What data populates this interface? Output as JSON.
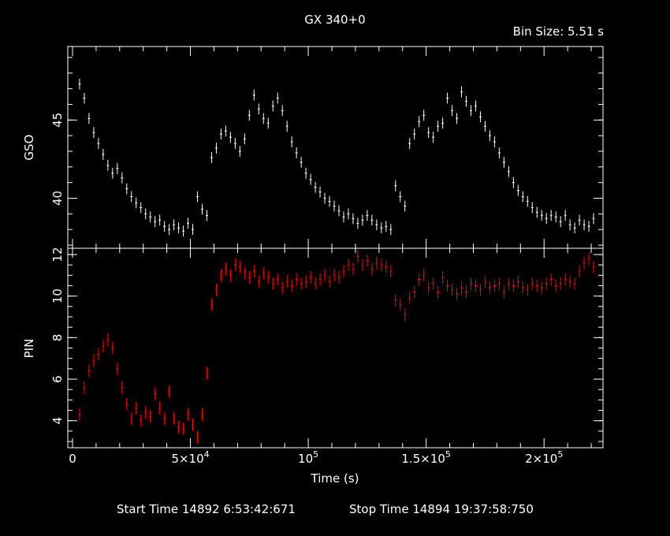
{
  "title": "GX 340+0",
  "bin_size": "Bin Size: 5.51 s",
  "footer": {
    "start": "Start Time 14892  6:53:42:671",
    "stop": "Stop Time 14894 19:37:58:750"
  },
  "colors": {
    "gso": "#ffffff",
    "pin": "#ff0000",
    "axes": "#ffffff",
    "background": "#000000"
  },
  "chart_data": [
    {
      "type": "scatter",
      "panel": "top",
      "ylabel": "GSO",
      "xlim": [
        -2000,
        225000
      ],
      "ylim": [
        36.8,
        49.7
      ],
      "yticks": [
        40,
        45
      ],
      "yticklabels": [
        "40",
        "45"
      ],
      "series": [
        {
          "color": "#ffffff",
          "x": [
            3000,
            5000,
            7000,
            9000,
            11000,
            13000,
            15000,
            17000,
            19000,
            21000,
            23000,
            25000,
            27000,
            29000,
            31000,
            33000,
            35000,
            37000,
            39000,
            41000,
            43000,
            45000,
            47000,
            49000,
            51000,
            53000,
            55000,
            57000,
            59000,
            61000,
            63000,
            65000,
            67000,
            69000,
            71000,
            73000,
            75000,
            77000,
            79000,
            81000,
            83000,
            85000,
            87000,
            89000,
            91000,
            93000,
            95000,
            97000,
            99000,
            101000,
            103000,
            105000,
            107000,
            109000,
            111000,
            113000,
            115000,
            117000,
            119000,
            121000,
            123000,
            125000,
            127000,
            129000,
            131000,
            133000,
            135000,
            137000,
            139000,
            141000,
            143000,
            145000,
            147000,
            149000,
            151000,
            153000,
            155000,
            157000,
            159000,
            161000,
            163000,
            165000,
            167000,
            169000,
            171000,
            173000,
            175000,
            177000,
            179000,
            181000,
            183000,
            185000,
            187000,
            189000,
            191000,
            193000,
            195000,
            197000,
            199000,
            201000,
            203000,
            205000,
            207000,
            209000,
            211000,
            213000,
            215000,
            217000,
            219000,
            221000
          ],
          "y": [
            47.3,
            46.4,
            45.1,
            44.2,
            43.5,
            42.8,
            42.1,
            41.6,
            41.9,
            41.3,
            40.6,
            40.1,
            39.7,
            39.4,
            39.0,
            38.8,
            38.5,
            38.6,
            38.2,
            38.0,
            38.3,
            38.1,
            37.9,
            38.4,
            38.0,
            40.1,
            39.3,
            38.9,
            42.6,
            43.2,
            44.1,
            44.3,
            43.9,
            43.5,
            43.0,
            43.8,
            45.3,
            46.6,
            45.7,
            45.1,
            44.8,
            45.9,
            46.4,
            45.6,
            44.6,
            43.6,
            42.9,
            42.3,
            41.6,
            41.2,
            40.7,
            40.4,
            40.0,
            39.8,
            39.5,
            39.2,
            38.8,
            39.0,
            38.7,
            38.4,
            38.6,
            38.9,
            38.6,
            38.3,
            38.1,
            38.2,
            38.0,
            40.8,
            40.1,
            39.5,
            43.5,
            44.1,
            44.9,
            45.3,
            44.2,
            43.9,
            44.6,
            44.8,
            46.4,
            45.6,
            45.1,
            46.8,
            46.2,
            45.6,
            45.9,
            45.2,
            44.6,
            44.0,
            43.6,
            42.9,
            42.3,
            41.7,
            41.0,
            40.5,
            40.1,
            39.8,
            39.4,
            39.1,
            38.9,
            38.7,
            38.9,
            38.8,
            38.5,
            38.9,
            38.3,
            38.1,
            38.6,
            38.3,
            38.2,
            38.7
          ]
        }
      ]
    },
    {
      "type": "scatter",
      "panel": "bottom",
      "ylabel": "PIN",
      "xlabel": "Time (s)",
      "xlim": [
        -2000,
        225000
      ],
      "ylim": [
        2.7,
        12.3
      ],
      "yticks": [
        4,
        6,
        8,
        10,
        12
      ],
      "yticklabels": [
        "4",
        "6",
        "8",
        "10",
        "12"
      ],
      "xticks": [
        0,
        50000,
        100000,
        150000,
        200000
      ],
      "xticklabels": [
        {
          "mantissa": "0",
          "exp": ""
        },
        {
          "mantissa": "5×10",
          "exp": "4"
        },
        {
          "mantissa": "10",
          "exp": "5"
        },
        {
          "mantissa": "1.5×10",
          "exp": "5"
        },
        {
          "mantissa": "2×10",
          "exp": "5"
        }
      ],
      "series": [
        {
          "color": "#ff0000",
          "x": [
            3000,
            5000,
            7000,
            9000,
            11000,
            13000,
            15000,
            17000,
            19000,
            21000,
            23000,
            25000,
            27000,
            29000,
            31000,
            33000,
            35000,
            37000,
            39000,
            41000,
            43000,
            45000,
            47000,
            49000,
            51000,
            53000,
            55000,
            57000,
            59000,
            61000,
            63000,
            65000,
            67000,
            69000,
            71000,
            73000,
            75000,
            77000,
            79000,
            81000,
            83000,
            85000,
            87000,
            89000,
            91000,
            93000,
            95000,
            97000,
            99000,
            101000,
            103000,
            105000,
            107000,
            109000,
            111000,
            113000,
            115000,
            117000,
            119000,
            121000,
            123000,
            125000,
            127000,
            129000,
            131000,
            133000,
            135000,
            137000,
            139000,
            141000,
            143000,
            145000,
            147000,
            149000,
            151000,
            153000,
            155000,
            157000,
            159000,
            161000,
            163000,
            165000,
            167000,
            169000,
            171000,
            173000,
            175000,
            177000,
            179000,
            181000,
            183000,
            185000,
            187000,
            189000,
            191000,
            193000,
            195000,
            197000,
            199000,
            201000,
            203000,
            205000,
            207000,
            209000,
            211000,
            213000,
            215000,
            217000,
            219000,
            221000
          ],
          "y": [
            4.3,
            5.6,
            6.4,
            6.9,
            7.2,
            7.6,
            7.9,
            7.5,
            6.5,
            5.6,
            4.8,
            4.1,
            4.6,
            4.0,
            4.4,
            4.2,
            5.3,
            4.6,
            4.1,
            5.4,
            4.1,
            3.7,
            3.6,
            4.3,
            3.8,
            3.2,
            4.3,
            6.3,
            9.6,
            10.3,
            11.0,
            11.3,
            11.0,
            11.5,
            11.4,
            11.1,
            10.9,
            11.2,
            10.7,
            11.1,
            10.9,
            10.6,
            10.8,
            10.4,
            10.7,
            10.5,
            10.8,
            10.6,
            10.7,
            10.9,
            10.6,
            10.8,
            11.0,
            10.7,
            11.0,
            10.9,
            11.2,
            11.5,
            11.3,
            11.9,
            11.5,
            11.7,
            11.3,
            11.6,
            11.5,
            11.4,
            11.2,
            9.8,
            9.6,
            9.1,
            9.9,
            10.2,
            10.8,
            11.0,
            10.4,
            10.6,
            10.2,
            10.9,
            10.5,
            10.3,
            10.1,
            10.4,
            10.2,
            10.6,
            10.5,
            10.3,
            10.7,
            10.4,
            10.5,
            10.6,
            10.2,
            10.6,
            10.5,
            10.7,
            10.4,
            10.3,
            10.6,
            10.5,
            10.4,
            10.6,
            10.8,
            10.5,
            10.6,
            10.8,
            10.7,
            10.6,
            11.2,
            11.6,
            11.8,
            11.4
          ]
        }
      ]
    }
  ]
}
